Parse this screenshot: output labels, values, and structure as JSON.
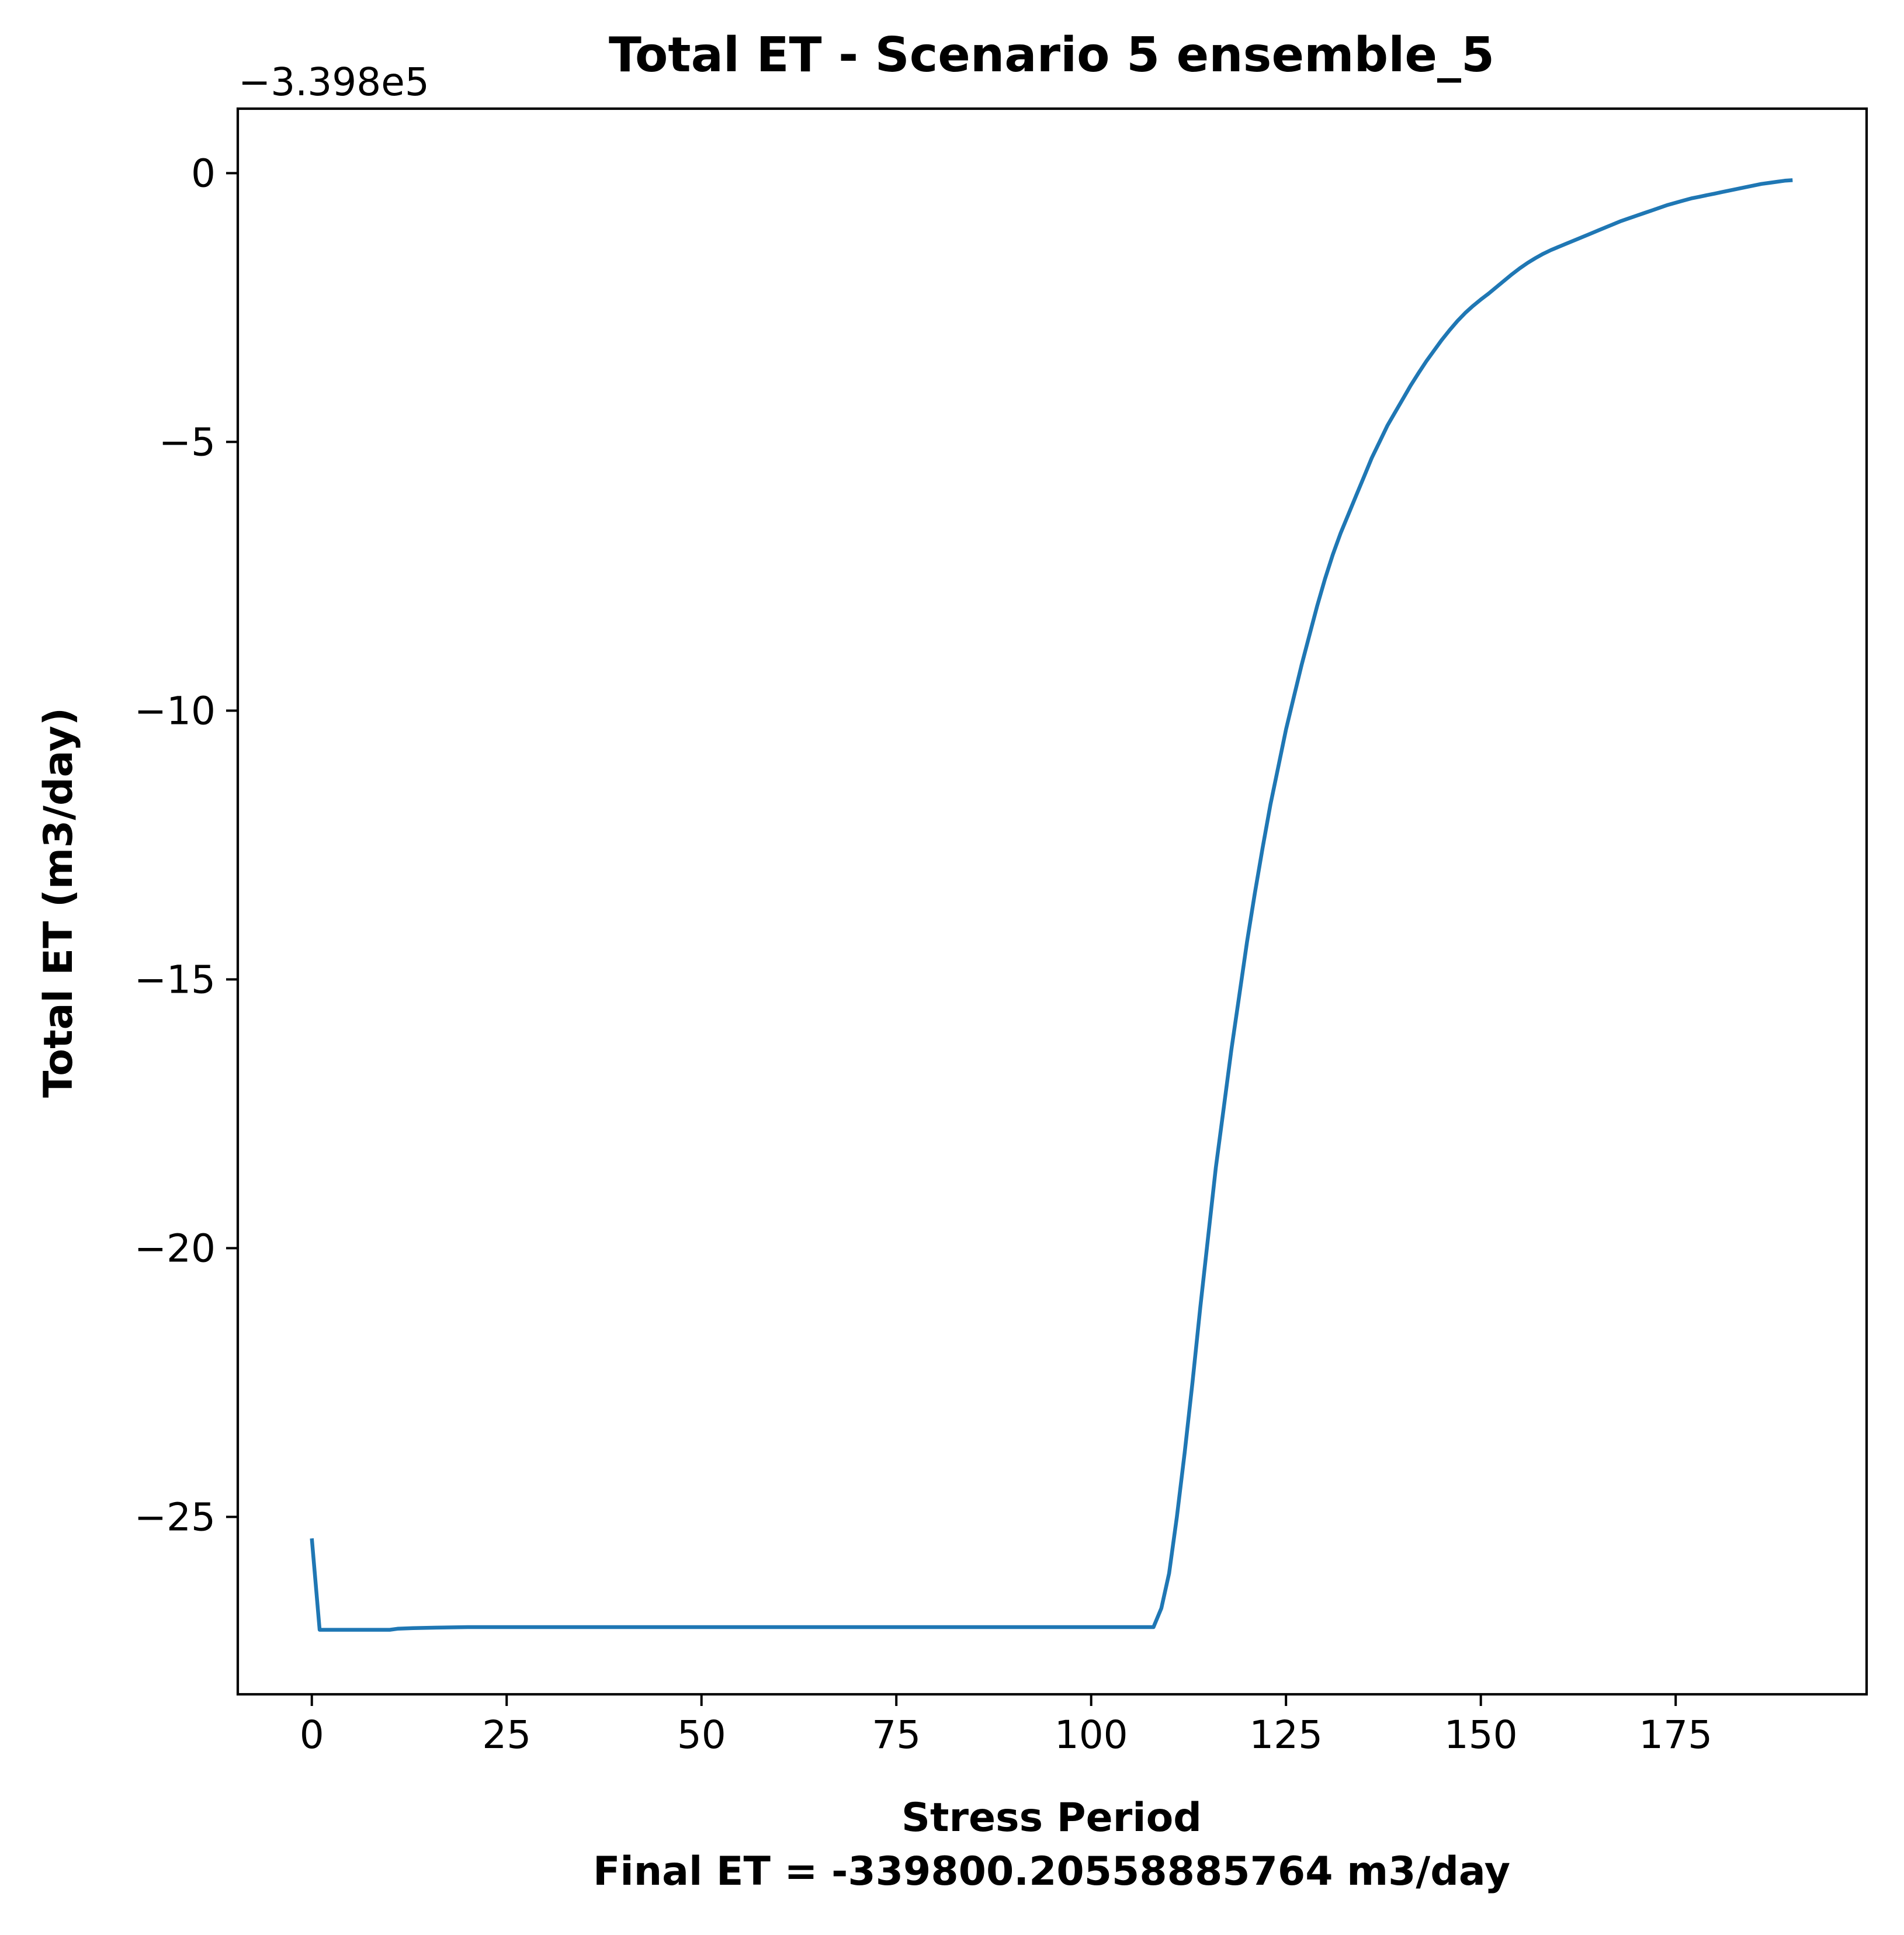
{
  "chart_data": {
    "type": "line",
    "title": "Total ET - Scenario 5 ensemble_5",
    "xlabel": "Stress Period",
    "ylabel": "Total ET (m3/day)",
    "footnote": "Final ET = -339800.20558885764 m3/day",
    "offset_label": "−3.398e5",
    "xlim": [
      -9.5,
      199.5
    ],
    "ylim": [
      -28.3,
      1.2
    ],
    "xticks": [
      0,
      25,
      50,
      75,
      100,
      125,
      150,
      175
    ],
    "yticks": [
      0,
      -5,
      -10,
      -15,
      -20,
      -25
    ],
    "xtick_labels": [
      "0",
      "25",
      "50",
      "75",
      "100",
      "125",
      "150",
      "175"
    ],
    "ytick_labels": [
      "0",
      "−5",
      "−10",
      "−15",
      "−20",
      "−25"
    ],
    "grid": false,
    "series": [
      {
        "color": "#1f77b4",
        "x": [
          0,
          1,
          5,
          10,
          11,
          13,
          16,
          20,
          30,
          50,
          75,
          100,
          108,
          109,
          110,
          111,
          112,
          113,
          114,
          115,
          116,
          117,
          118,
          119,
          120,
          121,
          122,
          123,
          124,
          125,
          126,
          127,
          128,
          129,
          130,
          131,
          132,
          133,
          134,
          135,
          136,
          137,
          138,
          139,
          140,
          141,
          142,
          143,
          144,
          145,
          146,
          147,
          148,
          149,
          150,
          151,
          152,
          153,
          154,
          155,
          156,
          157,
          158,
          159,
          160,
          161,
          162,
          163,
          164,
          165,
          166,
          167,
          168,
          169,
          170,
          171,
          172,
          173,
          174,
          175,
          176,
          177,
          178,
          179,
          180,
          181,
          182,
          183,
          184,
          185,
          186,
          187,
          188,
          189,
          190
        ],
        "y": [
          -25.4,
          -27.1,
          -27.1,
          -27.1,
          -27.08,
          -27.07,
          -27.06,
          -27.05,
          -27.05,
          -27.05,
          -27.05,
          -27.05,
          -27.05,
          -26.7,
          -26.05,
          -25.0,
          -23.8,
          -22.5,
          -21.1,
          -19.8,
          -18.5,
          -17.4,
          -16.3,
          -15.3,
          -14.3,
          -13.4,
          -12.55,
          -11.75,
          -11.05,
          -10.35,
          -9.75,
          -9.15,
          -8.6,
          -8.05,
          -7.55,
          -7.1,
          -6.7,
          -6.35,
          -6.0,
          -5.65,
          -5.3,
          -5.0,
          -4.7,
          -4.45,
          -4.2,
          -3.95,
          -3.72,
          -3.5,
          -3.3,
          -3.1,
          -2.92,
          -2.75,
          -2.6,
          -2.47,
          -2.35,
          -2.24,
          -2.12,
          -2.0,
          -1.88,
          -1.77,
          -1.67,
          -1.58,
          -1.5,
          -1.43,
          -1.37,
          -1.31,
          -1.25,
          -1.19,
          -1.13,
          -1.07,
          -1.01,
          -0.95,
          -0.89,
          -0.84,
          -0.79,
          -0.74,
          -0.69,
          -0.64,
          -0.59,
          -0.55,
          -0.51,
          -0.47,
          -0.44,
          -0.41,
          -0.38,
          -0.35,
          -0.32,
          -0.29,
          -0.26,
          -0.23,
          -0.2,
          -0.18,
          -0.16,
          -0.14,
          -0.13
        ]
      }
    ]
  }
}
